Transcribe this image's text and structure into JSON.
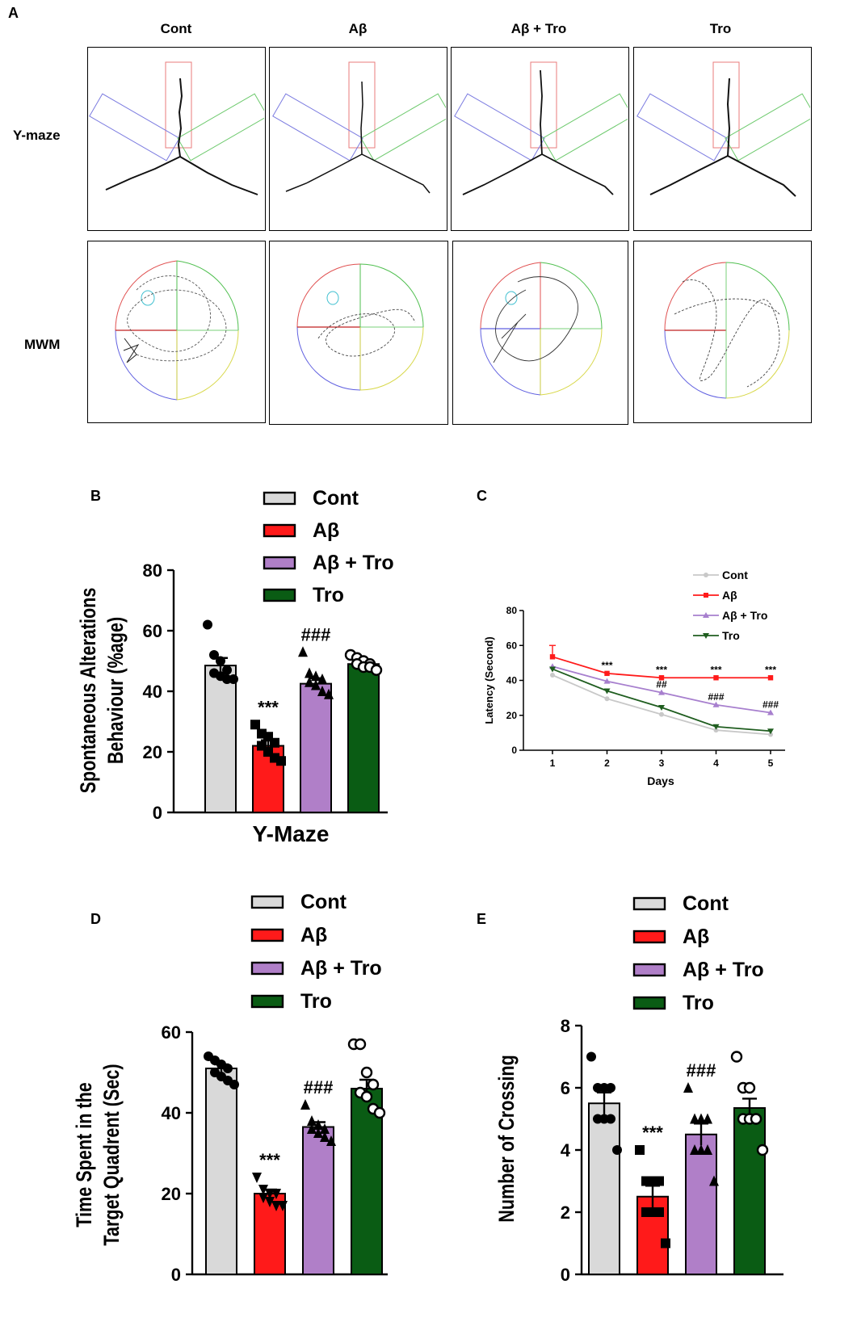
{
  "figure": {
    "panel_letters": {
      "a": "A",
      "b": "B",
      "c": "C",
      "d": "D",
      "e": "E"
    },
    "groups": [
      "Cont",
      "Aβ",
      "Aβ + Tro",
      "Tro"
    ],
    "row_labels": [
      "Y-maze",
      "MWM"
    ],
    "colors": {
      "cont": "#d9d9d9",
      "abeta": "#ff1a1a",
      "abeta_tro": "#b07fc8",
      "tro": "#0a5c14",
      "cont_line": "#c8c8c8",
      "tro_line": "#1f5d1f",
      "abeta_tro_line": "#a77fce"
    }
  },
  "chart_data": [
    {
      "id": "B",
      "type": "bar",
      "categories": [
        "Cont",
        "Aβ",
        "Aβ + Tro",
        "Tro"
      ],
      "values": [
        48.5,
        22,
        42.5,
        49
      ],
      "errors": [
        2.5,
        1.8,
        1.8,
        1.2
      ],
      "points": [
        [
          62,
          52,
          50,
          47,
          46,
          45,
          44,
          44
        ],
        [
          29,
          26,
          25,
          23,
          22,
          20,
          18,
          17
        ],
        [
          53,
          46,
          45,
          44,
          43,
          42,
          40,
          39
        ],
        [
          52,
          51,
          50,
          49,
          49,
          48,
          48,
          47
        ]
      ],
      "annotations": [
        "",
        "***",
        "###",
        ""
      ],
      "ylabel": "Spontaneous Alterations Behaviour (%age)",
      "ylabel_lines": [
        "Spontaneous Alterations",
        "Behaviour (%age)"
      ],
      "xlabel": "Y-Maze",
      "ylim": [
        0,
        80
      ],
      "yticks": [
        "0",
        "20",
        "40",
        "60",
        "80"
      ],
      "legend": [
        "Cont",
        "Aβ",
        "Aβ + Tro",
        "Tro"
      ]
    },
    {
      "id": "C",
      "type": "line",
      "x": [
        1,
        2,
        3,
        4,
        5
      ],
      "xticks": [
        "1",
        "2",
        "3",
        "4",
        "5"
      ],
      "series": [
        {
          "name": "Cont",
          "values": [
            43,
            29.5,
            20.5,
            11.5,
            9
          ]
        },
        {
          "name": "Aβ",
          "values": [
            53.5,
            44,
            41.5,
            41.5,
            41.5
          ]
        },
        {
          "name": "Aβ + Tro",
          "values": [
            48,
            39.5,
            33,
            26,
            21.5
          ]
        },
        {
          "name": "Tro",
          "values": [
            46.5,
            34,
            24.5,
            13.5,
            11
          ]
        }
      ],
      "annotations_star": [
        "",
        "***",
        "***",
        "***",
        "***"
      ],
      "annotations_hash": [
        "",
        "",
        "##",
        "###",
        "###"
      ],
      "xlabel": "Days",
      "ylabel": "Latency (Second)",
      "ylim": [
        0,
        80
      ],
      "yticks": [
        "0",
        "20",
        "40",
        "60",
        "80"
      ],
      "legend": [
        "Cont",
        "Aβ",
        "Aβ + Tro",
        "Tro"
      ]
    },
    {
      "id": "D",
      "type": "bar",
      "categories": [
        "Cont",
        "Aβ",
        "Aβ + Tro",
        "Tro"
      ],
      "values": [
        51,
        20,
        36.5,
        46
      ],
      "errors": [
        1,
        1,
        1.2,
        2.2
      ],
      "points": [
        [
          54,
          53,
          52,
          51,
          50,
          49,
          48,
          47
        ],
        [
          24,
          21,
          20,
          20,
          19,
          18,
          17,
          17
        ],
        [
          42,
          38,
          37,
          36,
          36,
          35,
          34,
          33
        ],
        [
          57,
          57,
          50,
          47,
          45,
          44,
          41,
          40
        ]
      ],
      "annotations": [
        "",
        "***",
        "###",
        ""
      ],
      "ylabel": "Time Spent in the Target Quadrent (Sec)",
      "ylabel_lines": [
        "Time Spent in the",
        "Target Quadrent (Sec)"
      ],
      "xlabel": "",
      "ylim": [
        0,
        60
      ],
      "yticks": [
        "0",
        "20",
        "40",
        "60"
      ],
      "legend": [
        "Cont",
        "Aβ",
        "Aβ + Tro",
        "Tro"
      ]
    },
    {
      "id": "E",
      "type": "bar",
      "categories": [
        "Cont",
        "Aβ",
        "Aβ + Tro",
        "Tro"
      ],
      "values": [
        5.5,
        2.5,
        4.5,
        5.35
      ],
      "errors": [
        0.35,
        0.35,
        0.35,
        0.3
      ],
      "points": [
        [
          7,
          6,
          6,
          6,
          5,
          5,
          5,
          4
        ],
        [
          4,
          3,
          3,
          3,
          2,
          2,
          2,
          1
        ],
        [
          6,
          5,
          5,
          5,
          4,
          4,
          4,
          3
        ],
        [
          7,
          6,
          6,
          5,
          5,
          5,
          5,
          4
        ]
      ],
      "annotations": [
        "",
        "***",
        "###",
        ""
      ],
      "ylabel": "Number of Crossing",
      "ylabel_lines": [
        "Number of Crossing"
      ],
      "xlabel": "",
      "ylim": [
        0,
        8
      ],
      "yticks": [
        "0",
        "2",
        "4",
        "6",
        "8"
      ],
      "legend": [
        "Cont",
        "Aβ",
        "Aβ + Tro",
        "Tro"
      ]
    }
  ]
}
